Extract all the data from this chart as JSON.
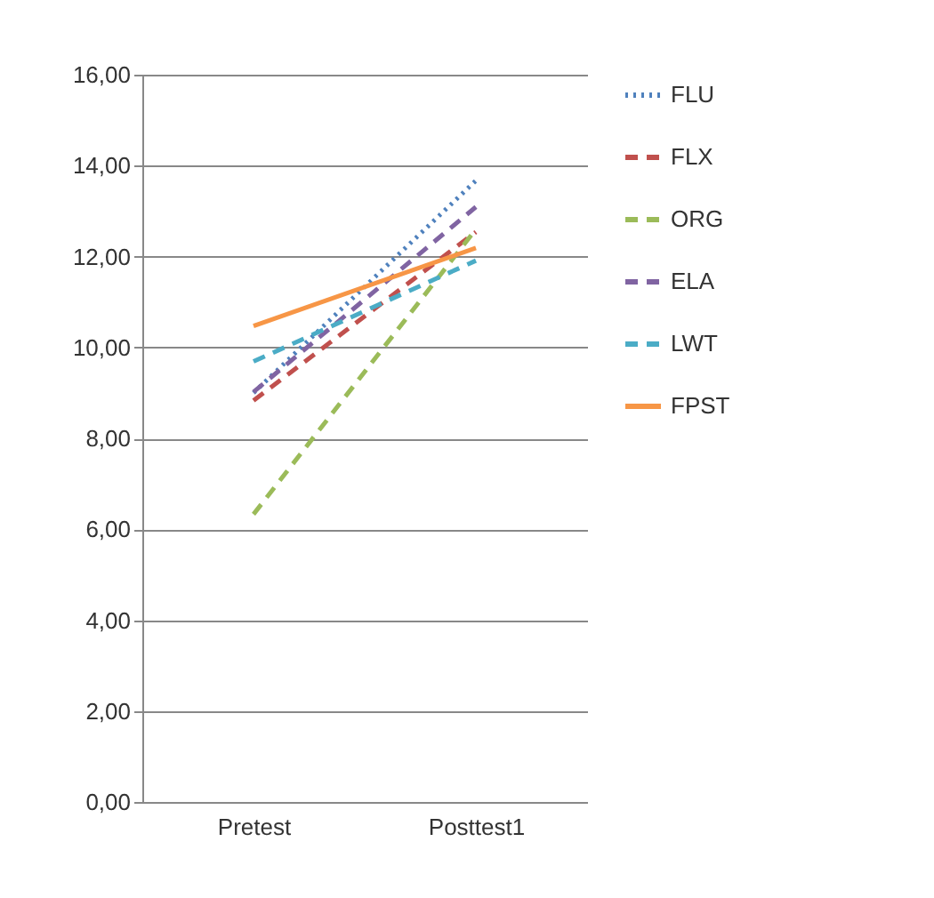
{
  "chart_data": {
    "type": "line",
    "categories": [
      "Pretest",
      "Posttest1"
    ],
    "series": [
      {
        "name": "FLU",
        "color": "#4f81bd",
        "line_style": "dotted",
        "values": [
          9.0,
          13.67
        ]
      },
      {
        "name": "FLX",
        "color": "#c0504d",
        "line_style": "dashed",
        "values": [
          8.83,
          12.54
        ]
      },
      {
        "name": "ORG",
        "color": "#9bbb59",
        "line_style": "dashed",
        "values": [
          6.33,
          12.6
        ]
      },
      {
        "name": "ELA",
        "color": "#8064a2",
        "line_style": "dashed",
        "values": [
          9.02,
          13.09
        ]
      },
      {
        "name": "LWT",
        "color": "#4bacc6",
        "line_style": "dashed",
        "values": [
          9.69,
          11.91
        ]
      },
      {
        "name": "FPST",
        "color": "#f79646",
        "line_style": "solid",
        "values": [
          10.47,
          12.19
        ]
      }
    ],
    "ylim": [
      0,
      16
    ],
    "yticks": [
      {
        "value": 0,
        "label": "0,00"
      },
      {
        "value": 2,
        "label": "2,00"
      },
      {
        "value": 4,
        "label": "4,00"
      },
      {
        "value": 6,
        "label": "6,00"
      },
      {
        "value": 8,
        "label": "8,00"
      },
      {
        "value": 10,
        "label": "10,00"
      },
      {
        "value": 12,
        "label": "12,00"
      },
      {
        "value": 14,
        "label": "14,00"
      },
      {
        "value": 16,
        "label": "16,00"
      }
    ],
    "grid": "y",
    "legend": "right",
    "marker": "none"
  }
}
